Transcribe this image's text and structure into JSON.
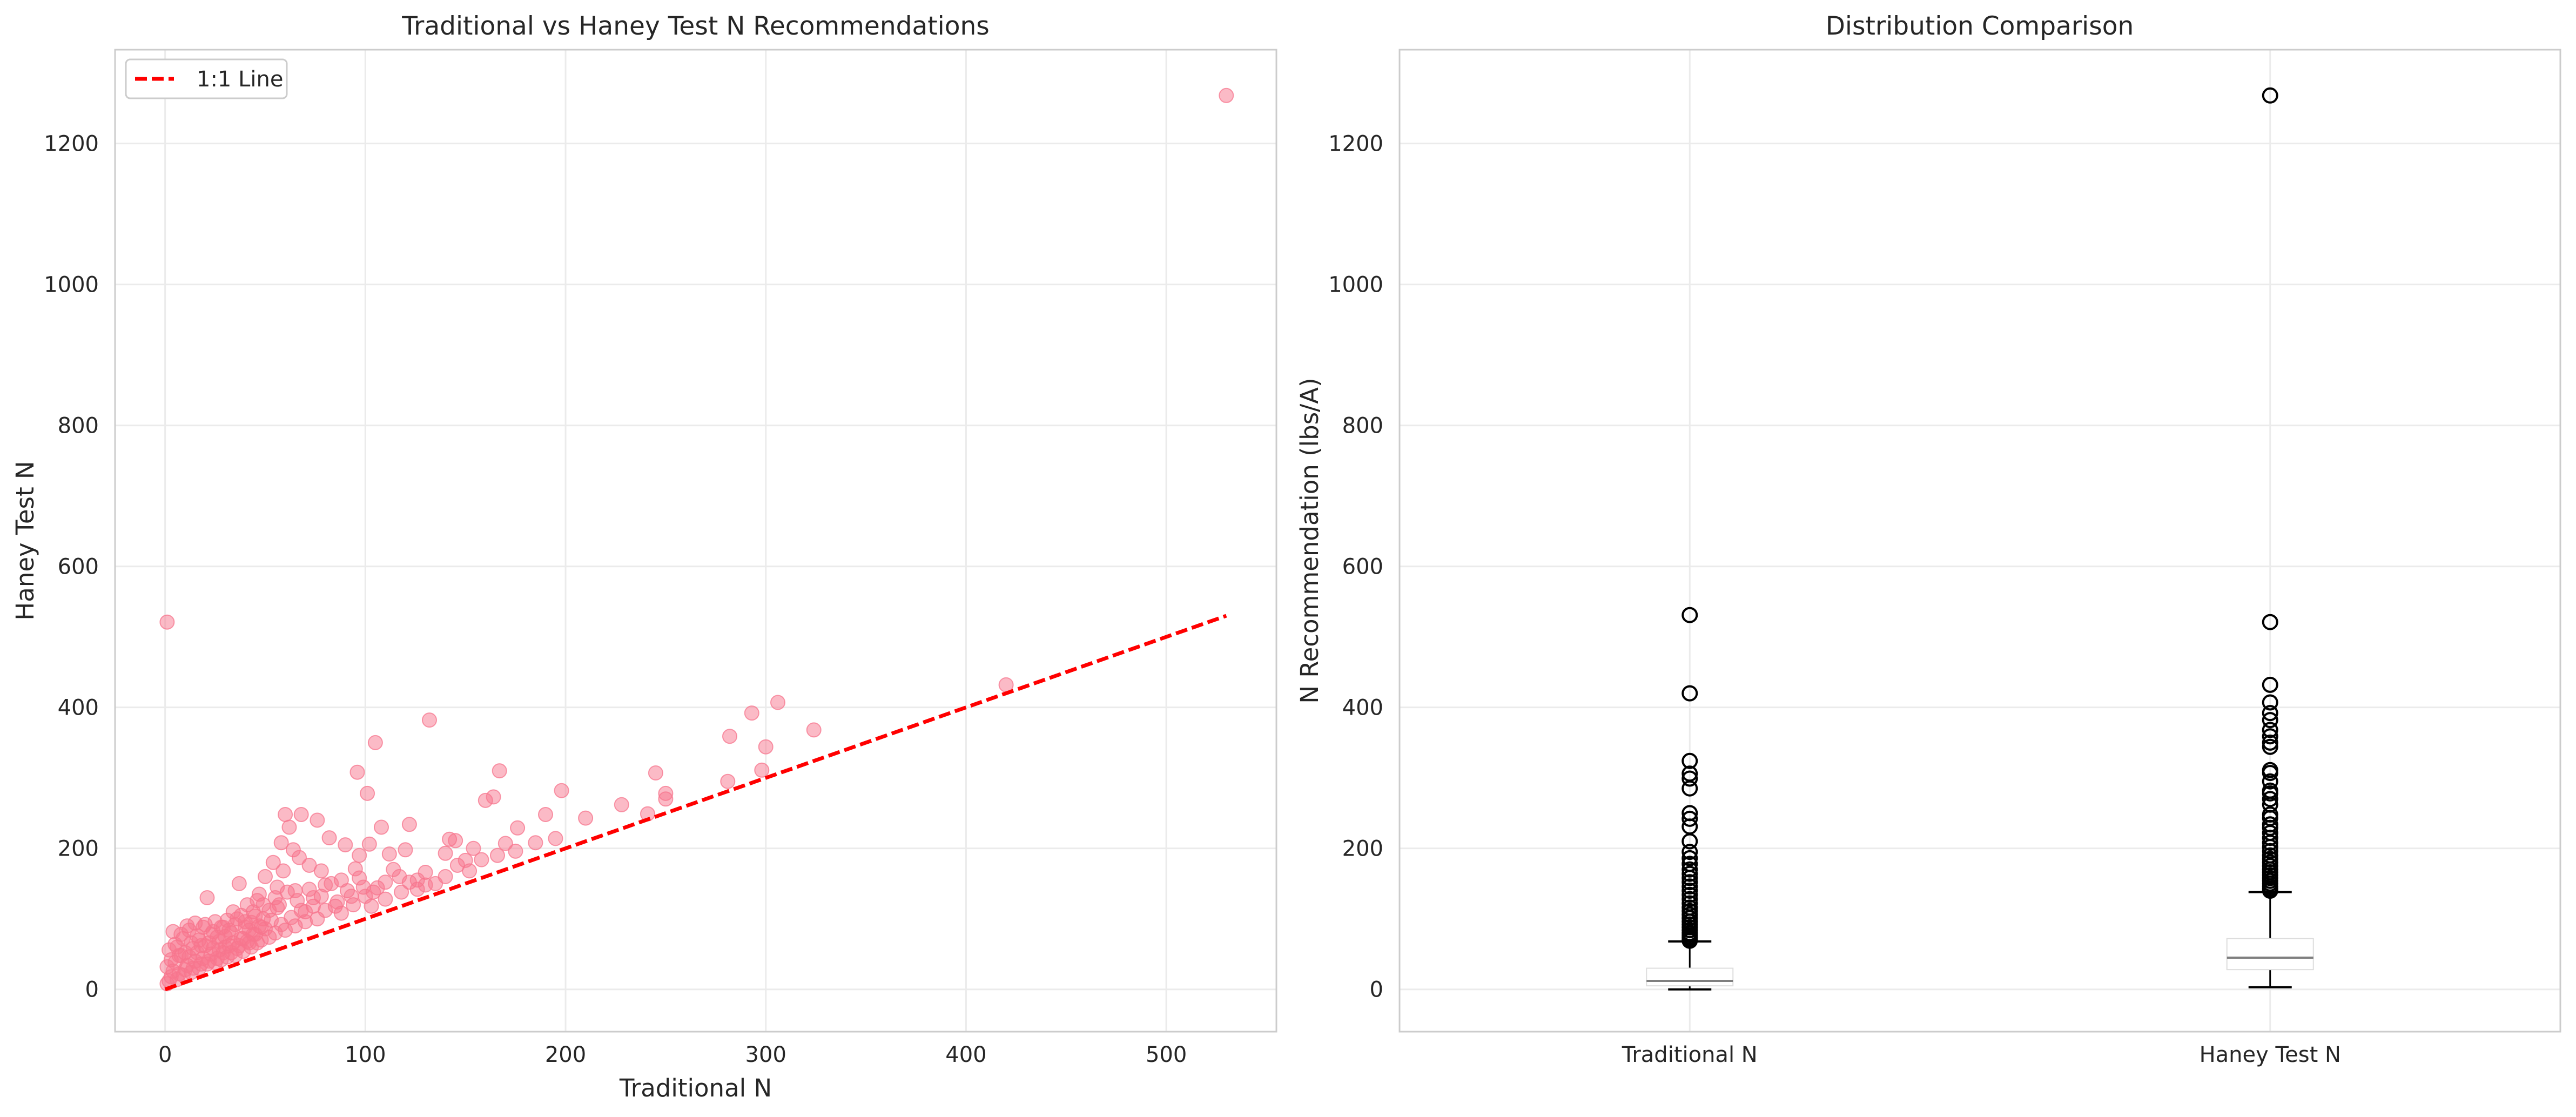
{
  "colors": {
    "scatter_point": "#f7768e",
    "reference_line": "#ff0000",
    "grid": "#ebebeb",
    "axes_frame": "#cccccc",
    "box_median": "#7f7f7f",
    "flier": "#000000"
  },
  "chart_data": [
    {
      "type": "scatter",
      "title": "Traditional vs Haney Test N Recommendations",
      "xlabel": "Traditional N",
      "ylabel": "Haney Test N",
      "xlim": [
        -25,
        555
      ],
      "ylim": [
        -60,
        1333
      ],
      "xticks": [
        0,
        100,
        200,
        300,
        400,
        500
      ],
      "yticks": [
        0,
        200,
        400,
        600,
        800,
        1000,
        1200
      ],
      "grid": true,
      "legend": {
        "placement": "upper-left",
        "entries": [
          "1:1 Line"
        ]
      },
      "reference_line": {
        "name": "1:1 Line",
        "style": "dashed",
        "x": [
          0,
          530
        ],
        "y": [
          0,
          530
        ]
      },
      "marker_alpha": 0.5,
      "points": [
        [
          530,
          1268
        ],
        [
          1,
          521
        ],
        [
          420,
          432
        ],
        [
          306,
          407
        ],
        [
          293,
          392
        ],
        [
          282,
          359
        ],
        [
          300,
          344
        ],
        [
          324,
          368
        ],
        [
          281,
          295
        ],
        [
          298,
          311
        ],
        [
          250,
          278
        ],
        [
          250,
          270
        ],
        [
          245,
          307
        ],
        [
          228,
          262
        ],
        [
          241,
          249
        ],
        [
          210,
          243
        ],
        [
          198,
          282
        ],
        [
          190,
          248
        ],
        [
          176,
          229
        ],
        [
          170,
          207
        ],
        [
          167,
          310
        ],
        [
          164,
          273
        ],
        [
          160,
          268
        ],
        [
          154,
          200
        ],
        [
          150,
          183
        ],
        [
          145,
          211
        ],
        [
          142,
          213
        ],
        [
          140,
          193
        ],
        [
          132,
          382
        ],
        [
          130,
          148
        ],
        [
          126,
          155
        ],
        [
          122,
          234
        ],
        [
          120,
          198
        ],
        [
          117,
          160
        ],
        [
          112,
          192
        ],
        [
          110,
          152
        ],
        [
          108,
          230
        ],
        [
          105,
          350
        ],
        [
          104,
          138
        ],
        [
          102,
          206
        ],
        [
          101,
          278
        ],
        [
          99,
          145
        ],
        [
          97,
          190
        ],
        [
          96,
          308
        ],
        [
          95,
          171
        ],
        [
          93,
          132
        ],
        [
          90,
          205
        ],
        [
          88,
          155
        ],
        [
          85,
          118
        ],
        [
          82,
          215
        ],
        [
          80,
          148
        ],
        [
          78,
          168
        ],
        [
          76,
          240
        ],
        [
          74,
          130
        ],
        [
          72,
          176
        ],
        [
          70,
          110
        ],
        [
          68,
          248
        ],
        [
          67,
          187
        ],
        [
          65,
          140
        ],
        [
          64,
          198
        ],
        [
          62,
          230
        ],
        [
          60,
          248
        ],
        [
          59,
          168
        ],
        [
          58,
          208
        ],
        [
          57,
          120
        ],
        [
          56,
          145
        ],
        [
          55,
          130
        ],
        [
          54,
          180
        ],
        [
          52,
          112
        ],
        [
          50,
          160
        ],
        [
          49,
          100
        ],
        [
          48,
          88
        ],
        [
          47,
          135
        ],
        [
          46,
          126
        ],
        [
          45,
          78
        ],
        [
          44,
          110
        ],
        [
          43,
          95
        ],
        [
          42,
          66
        ],
        [
          41,
          120
        ],
        [
          40,
          88
        ],
        [
          39,
          72
        ],
        [
          38,
          105
        ],
        [
          37,
          150
        ],
        [
          36,
          58
        ],
        [
          35,
          92
        ],
        [
          34,
          110
        ],
        [
          33,
          80
        ],
        [
          32,
          62
        ],
        [
          31,
          98
        ],
        [
          30,
          75
        ],
        [
          29,
          52
        ],
        [
          28,
          88
        ],
        [
          27,
          68
        ],
        [
          26,
          44
        ],
        [
          25,
          96
        ],
        [
          24,
          58
        ],
        [
          23,
          78
        ],
        [
          22,
          40
        ],
        [
          21,
          130
        ],
        [
          20,
          62
        ],
        [
          19,
          88
        ],
        [
          18,
          36
        ],
        [
          17,
          70
        ],
        [
          16,
          52
        ],
        [
          15,
          94
        ],
        [
          14,
          30
        ],
        [
          13,
          66
        ],
        [
          12,
          46
        ],
        [
          11,
          90
        ],
        [
          10,
          28
        ],
        [
          9,
          72
        ],
        [
          8,
          48
        ],
        [
          7,
          22
        ],
        [
          6,
          60
        ],
        [
          5,
          38
        ],
        [
          4,
          82
        ],
        [
          3,
          18
        ],
        [
          2,
          56
        ],
        [
          1,
          32
        ],
        [
          1,
          8
        ],
        [
          2,
          12
        ],
        [
          3,
          42
        ],
        [
          4,
          26
        ],
        [
          5,
          64
        ],
        [
          6,
          14
        ],
        [
          7,
          48
        ],
        [
          8,
          78
        ],
        [
          9,
          20
        ],
        [
          10,
          52
        ],
        [
          11,
          34
        ],
        [
          12,
          84
        ],
        [
          13,
          24
        ],
        [
          14,
          58
        ],
        [
          15,
          40
        ],
        [
          16,
          76
        ],
        [
          17,
          30
        ],
        [
          18,
          62
        ],
        [
          19,
          44
        ],
        [
          20,
          92
        ],
        [
          21,
          36
        ],
        [
          22,
          66
        ],
        [
          23,
          50
        ],
        [
          24,
          82
        ],
        [
          25,
          38
        ],
        [
          26,
          74
        ],
        [
          27,
          56
        ],
        [
          28,
          42
        ],
        [
          29,
          88
        ],
        [
          30,
          60
        ],
        [
          31,
          46
        ],
        [
          32,
          84
        ],
        [
          33,
          52
        ],
        [
          34,
          66
        ],
        [
          35,
          48
        ],
        [
          36,
          100
        ],
        [
          37,
          62
        ],
        [
          38,
          72
        ],
        [
          39,
          54
        ],
        [
          40,
          96
        ],
        [
          41,
          68
        ],
        [
          42,
          84
        ],
        [
          43,
          60
        ],
        [
          44,
          78
        ],
        [
          45,
          104
        ],
        [
          46,
          66
        ],
        [
          47,
          90
        ],
        [
          48,
          70
        ],
        [
          49,
          120
        ],
        [
          50,
          86
        ],
        [
          52,
          74
        ],
        [
          53,
          98
        ],
        [
          55,
          80
        ],
        [
          56,
          116
        ],
        [
          58,
          92
        ],
        [
          60,
          84
        ],
        [
          61,
          138
        ],
        [
          63,
          102
        ],
        [
          65,
          90
        ],
        [
          66,
          126
        ],
        [
          68,
          112
        ],
        [
          70,
          96
        ],
        [
          72,
          142
        ],
        [
          74,
          118
        ],
        [
          76,
          100
        ],
        [
          78,
          132
        ],
        [
          80,
          112
        ],
        [
          83,
          150
        ],
        [
          86,
          124
        ],
        [
          88,
          108
        ],
        [
          91,
          140
        ],
        [
          94,
          120
        ],
        [
          97,
          158
        ],
        [
          100,
          132
        ],
        [
          103,
          118
        ],
        [
          106,
          144
        ],
        [
          110,
          128
        ],
        [
          114,
          170
        ],
        [
          118,
          138
        ],
        [
          122,
          152
        ],
        [
          126,
          142
        ],
        [
          130,
          166
        ],
        [
          135,
          150
        ],
        [
          140,
          160
        ],
        [
          146,
          176
        ],
        [
          152,
          168
        ],
        [
          158,
          184
        ],
        [
          166,
          190
        ],
        [
          175,
          196
        ],
        [
          185,
          208
        ],
        [
          195,
          214
        ]
      ]
    },
    {
      "type": "box",
      "title": "Distribution Comparison",
      "ylabel": "N Recommendation (lbs/A)",
      "ylim": [
        -60,
        1333
      ],
      "yticks": [
        0,
        200,
        400,
        600,
        800,
        1000,
        1200
      ],
      "categories": [
        "Traditional N",
        "Haney Test N"
      ],
      "grid": true,
      "series": [
        {
          "name": "Traditional N",
          "stats": {
            "whisker_low": 0,
            "q1": 5,
            "median": 12,
            "q3": 30,
            "whisker_high": 68
          },
          "fliers": [
            531,
            420,
            324,
            306,
            299,
            285,
            250,
            242,
            231,
            210,
            195,
            186,
            178,
            170,
            164,
            158,
            152,
            146,
            140,
            134,
            128,
            122,
            116,
            111,
            106,
            101,
            96,
            92,
            88,
            84,
            80,
            77,
            74,
            71,
            69
          ]
        },
        {
          "name": "Haney Test N",
          "stats": {
            "whisker_low": 3,
            "q1": 28,
            "median": 45,
            "q3": 72,
            "whisker_high": 138
          },
          "fliers": [
            1268,
            521,
            432,
            407,
            392,
            382,
            368,
            359,
            350,
            344,
            311,
            307,
            295,
            282,
            278,
            270,
            262,
            248,
            243,
            234,
            229,
            222,
            215,
            208,
            202,
            196,
            190,
            185,
            180,
            175,
            170,
            166,
            162,
            158,
            154,
            150,
            146,
            143,
            140
          ]
        }
      ]
    }
  ]
}
